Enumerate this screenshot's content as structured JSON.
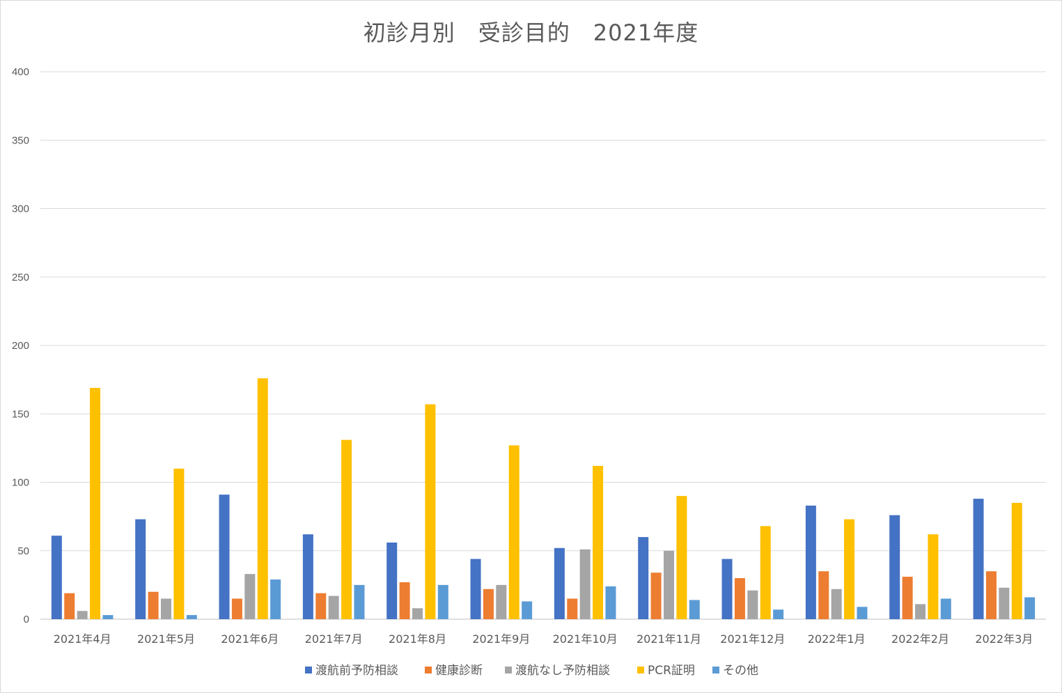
{
  "chart_data": {
    "type": "bar",
    "title": "初診月別　受診目的　2021年度",
    "xlabel": "",
    "ylabel": "",
    "ylim": [
      0,
      400
    ],
    "yticks": [
      0,
      50,
      100,
      150,
      200,
      250,
      300,
      350,
      400
    ],
    "grid": true,
    "legend_position": "bottom",
    "categories": [
      "2021年4月",
      "2021年5月",
      "2021年6月",
      "2021年7月",
      "2021年8月",
      "2021年9月",
      "2021年10月",
      "2021年11月",
      "2021年12月",
      "2022年1月",
      "2022年2月",
      "2022年3月"
    ],
    "series": [
      {
        "name": "渡航前予防相談",
        "color": "#4472c4",
        "values": [
          61,
          73,
          91,
          62,
          56,
          44,
          52,
          60,
          44,
          83,
          76,
          88
        ]
      },
      {
        "name": "健康診断",
        "color": "#ed7d31",
        "values": [
          19,
          20,
          15,
          19,
          27,
          22,
          15,
          34,
          30,
          35,
          31,
          35
        ]
      },
      {
        "name": "渡航なし予防相談",
        "color": "#a5a5a5",
        "values": [
          6,
          15,
          33,
          17,
          8,
          25,
          51,
          50,
          21,
          22,
          11,
          23
        ]
      },
      {
        "name": "PCR証明",
        "color": "#ffc000",
        "values": [
          169,
          110,
          176,
          131,
          157,
          127,
          112,
          90,
          68,
          73,
          62,
          85
        ]
      },
      {
        "name": "その他",
        "color": "#5b9bd5",
        "values": [
          3,
          3,
          29,
          25,
          25,
          13,
          24,
          14,
          7,
          9,
          15,
          16
        ]
      }
    ]
  }
}
